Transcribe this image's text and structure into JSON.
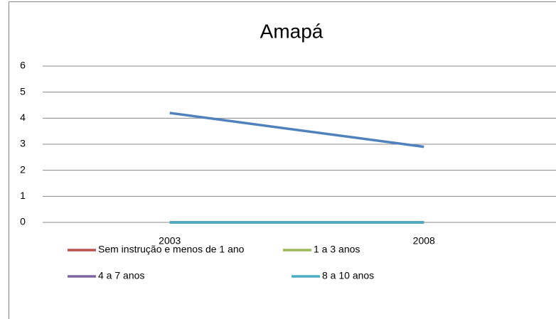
{
  "chart_data": {
    "type": "line",
    "title": "Amapá",
    "categories": [
      "2003",
      "2008"
    ],
    "series": [
      {
        "color": "#4f81bd",
        "values": [
          4.2,
          2.9
        ]
      },
      {
        "name": "Sem instrução e menos de 1 ano",
        "color": "#c0504d",
        "values": [
          0,
          0
        ]
      },
      {
        "name": "1 a 3 anos",
        "color": "#9bbb59",
        "values": [
          0,
          0
        ]
      },
      {
        "name": "4 a 7 anos",
        "color": "#8064a2",
        "values": [
          0,
          0
        ]
      },
      {
        "name": "8 a 10 anos",
        "color": "#4bacc6",
        "values": [
          0,
          0
        ]
      }
    ],
    "ylim": [
      0,
      6
    ],
    "yticks": [
      0,
      1,
      2,
      3,
      4,
      5,
      6
    ],
    "grid": true
  }
}
